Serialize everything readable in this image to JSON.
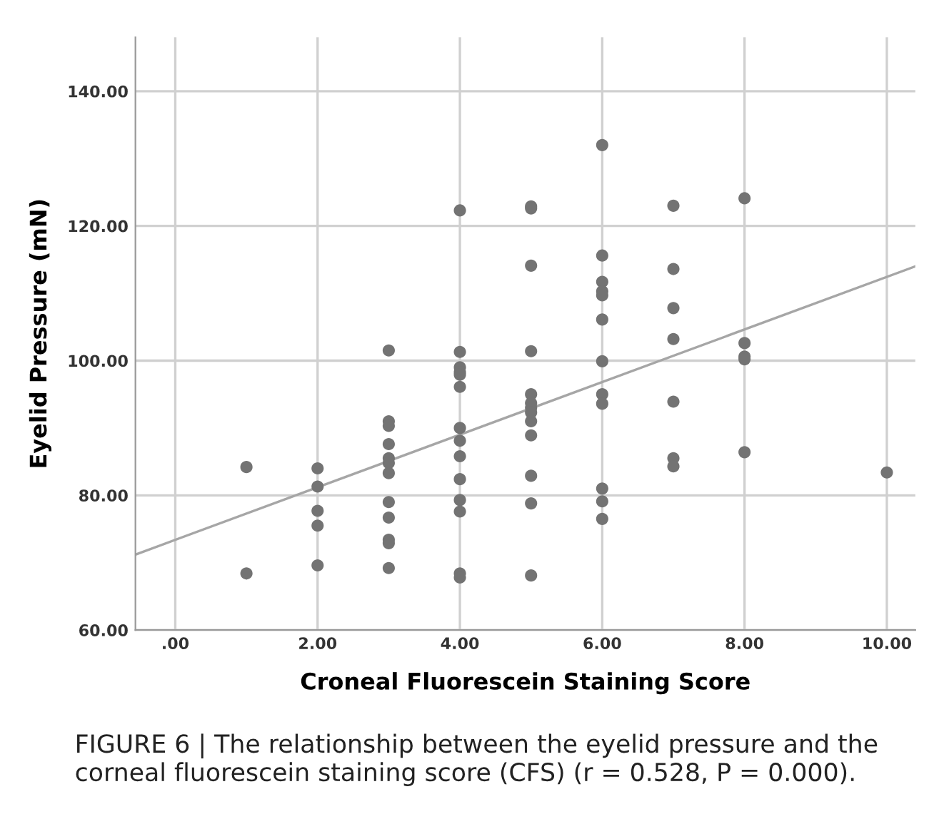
{
  "chart_data": {
    "type": "scatter",
    "xlabel": "Croneal Fluorescein Staining Score",
    "ylabel": "Eyelid Pressure (mN)",
    "annotations": [
      "FIGURE 6 | The relationship between the eyelid pressure and the corneal fluorescein staining score (CFS) (r = 0.528, P = 0.000)."
    ],
    "xlim": [
      -0.56,
      10.4
    ],
    "ylim": [
      60,
      148
    ],
    "xticks": [
      {
        "value": 0,
        "label": ".00"
      },
      {
        "value": 2,
        "label": "2.00"
      },
      {
        "value": 4,
        "label": "4.00"
      },
      {
        "value": 6,
        "label": "6.00"
      },
      {
        "value": 8,
        "label": "8.00"
      },
      {
        "value": 10,
        "label": "10.00"
      }
    ],
    "yticks": [
      {
        "value": 60,
        "label": "60.00"
      },
      {
        "value": 80,
        "label": "80.00"
      },
      {
        "value": 100,
        "label": "100.00"
      },
      {
        "value": 120,
        "label": "120.00"
      },
      {
        "value": 140,
        "label": "140.00"
      }
    ],
    "grid": true,
    "series": [
      {
        "marker": "circle",
        "color": "#737373",
        "x": [
          1,
          1,
          2,
          2,
          2,
          2,
          2,
          3,
          3,
          3,
          3,
          3,
          3,
          3,
          3,
          3,
          3,
          3,
          3,
          4,
          4,
          4,
          4,
          4,
          4,
          4,
          4,
          4,
          4,
          4,
          4,
          4,
          4,
          5,
          5,
          5,
          5,
          5,
          5,
          5,
          5,
          5,
          5,
          5,
          5,
          5,
          6,
          6,
          6,
          6,
          6,
          6,
          6,
          6,
          6,
          6,
          6,
          6,
          7,
          7,
          7,
          7,
          7,
          7,
          7,
          8,
          8,
          8,
          8,
          8,
          10
        ],
        "values": [
          84.2,
          68.4,
          84.0,
          81.3,
          77.7,
          75.5,
          69.6,
          101.5,
          91.0,
          90.3,
          87.6,
          85.5,
          84.8,
          83.3,
          79.0,
          76.7,
          73.4,
          72.9,
          69.2,
          122.3,
          101.3,
          99.0,
          98.3,
          97.9,
          96.1,
          90.0,
          88.1,
          85.8,
          82.4,
          79.3,
          77.6,
          68.4,
          67.8,
          122.9,
          122.6,
          114.1,
          101.4,
          95.0,
          93.7,
          93.0,
          92.3,
          91.0,
          88.9,
          82.9,
          78.8,
          68.1,
          132.0,
          115.6,
          111.7,
          110.3,
          109.7,
          106.1,
          99.9,
          95.0,
          93.6,
          81.0,
          79.1,
          76.5,
          123.0,
          113.6,
          107.8,
          103.2,
          93.9,
          85.5,
          84.3,
          124.1,
          102.6,
          100.6,
          100.2,
          86.4,
          83.4
        ]
      },
      {
        "type": "line",
        "marker": "none",
        "color": "#a6a6a6",
        "x": [
          -0.56,
          10.4
        ],
        "values": [
          71.2,
          114.0
        ]
      }
    ]
  }
}
